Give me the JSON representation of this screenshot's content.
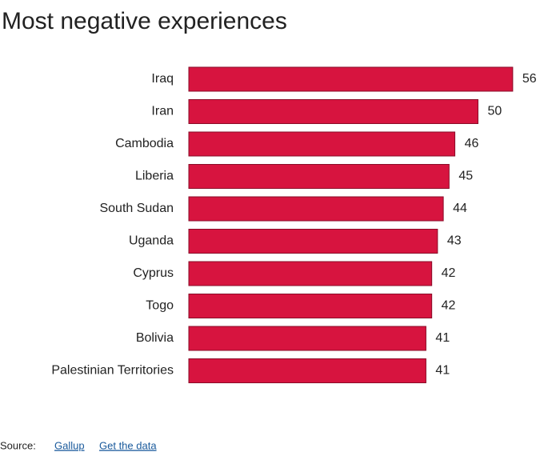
{
  "chart_data": {
    "type": "bar",
    "orientation": "horizontal",
    "title": "Most negative experiences",
    "categories": [
      "Iraq",
      "Iran",
      "Cambodia",
      "Liberia",
      "South Sudan",
      "Uganda",
      "Cyprus",
      "Togo",
      "Bolivia",
      "Palestinian Territories"
    ],
    "values": [
      56,
      50,
      46,
      45,
      44,
      43,
      42,
      42,
      41,
      41
    ],
    "color": "#d7143f",
    "source": {
      "label": "Source:",
      "links": [
        "Gallup",
        "Get the data"
      ]
    }
  }
}
